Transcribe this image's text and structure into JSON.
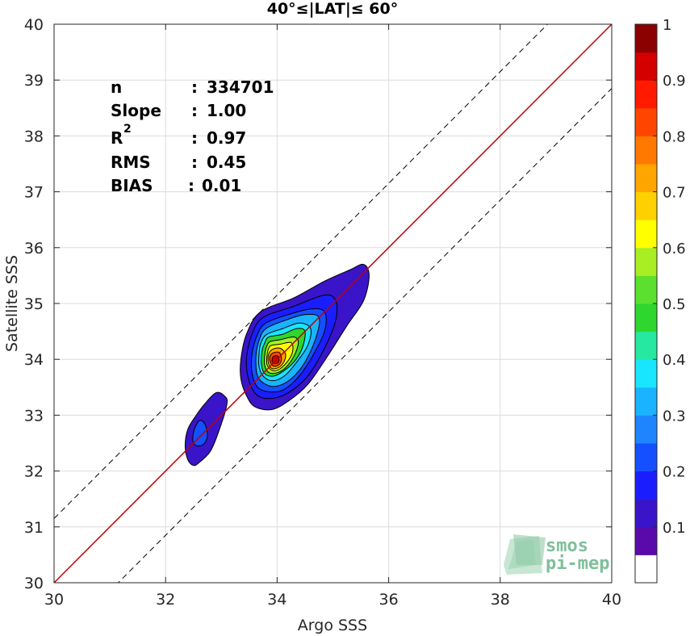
{
  "chart_data": {
    "type": "contour-density",
    "title": "40°≤|LAT|≤ 60°",
    "xlabel": "Argo SSS",
    "ylabel": "Satellite SSS",
    "xlim": [
      30,
      40
    ],
    "ylim": [
      30,
      40
    ],
    "xticks": [
      30,
      32,
      34,
      36,
      38,
      40
    ],
    "yticks": [
      30,
      31,
      32,
      33,
      34,
      35,
      36,
      37,
      38,
      39,
      40
    ],
    "grid": true,
    "stats": [
      {
        "key": "n",
        "sep": ":",
        "value": "334701"
      },
      {
        "key": "Slope",
        "sep": ":",
        "value": "1.00"
      },
      {
        "key": "R",
        "sup": "2",
        "sep": ":",
        "value": "0.97"
      },
      {
        "key": "RMS",
        "sep": ":",
        "value": "0.45"
      },
      {
        "key": "BIAS",
        "sep": ":",
        "value": "0.01"
      }
    ],
    "reference_line": {
      "slope": 1,
      "intercept": 0,
      "color": "#c00000"
    },
    "offset_lines": {
      "offsets": [
        -1.15,
        1.15
      ],
      "style": "dashed",
      "color": "#000000"
    },
    "main_blob": {
      "center": [
        33.95,
        33.95
      ],
      "peak": 1.0
    },
    "secondary_blob": {
      "center": [
        32.65,
        32.65
      ],
      "peak": 0.2
    },
    "colorbar": {
      "range": [
        0,
        1
      ],
      "ticks": [
        "0.1",
        "0.2",
        "0.3",
        "0.4",
        "0.5",
        "0.6",
        "0.7",
        "0.8",
        "0.9",
        "1"
      ],
      "colors": [
        "#ffffff",
        "#5a0aaa",
        "#3a14c8",
        "#1a1eff",
        "#1450ff",
        "#1f85ff",
        "#1ab3ff",
        "#18e6ff",
        "#26e8a0",
        "#2ed62e",
        "#5ce02e",
        "#a8ee22",
        "#ffff00",
        "#ffd000",
        "#ffa500",
        "#ff7800",
        "#ff4500",
        "#ff1a00",
        "#d40000",
        "#8b0000"
      ]
    },
    "contour_levels": [
      {
        "level": 0.05,
        "color": "#3a14c8",
        "points": [
          [
            32.7,
            33.2
          ],
          [
            32.9,
            33.4
          ],
          [
            33.05,
            33.35
          ],
          [
            33.1,
            33.2
          ],
          [
            32.95,
            32.7
          ],
          [
            32.8,
            32.35
          ],
          [
            32.6,
            32.15
          ],
          [
            32.5,
            32.1
          ],
          [
            32.4,
            32.2
          ],
          [
            32.35,
            32.45
          ],
          [
            32.4,
            32.75
          ],
          [
            32.55,
            33.0
          ]
        ]
      },
      {
        "level": 0.2,
        "color": "#1450ff",
        "points": [
          [
            32.6,
            32.9
          ],
          [
            32.7,
            32.85
          ],
          [
            32.75,
            32.65
          ],
          [
            32.7,
            32.5
          ],
          [
            32.6,
            32.45
          ],
          [
            32.5,
            32.5
          ],
          [
            32.5,
            32.7
          ]
        ]
      },
      {
        "level": 0.05,
        "color": "#3a14c8",
        "points": [
          [
            33.7,
            34.85
          ],
          [
            34.3,
            35.1
          ],
          [
            34.85,
            35.4
          ],
          [
            35.3,
            35.6
          ],
          [
            35.55,
            35.7
          ],
          [
            35.65,
            35.5
          ],
          [
            35.55,
            35.05
          ],
          [
            35.25,
            34.6
          ],
          [
            34.9,
            34.05
          ],
          [
            34.55,
            33.55
          ],
          [
            34.2,
            33.25
          ],
          [
            33.9,
            33.1
          ],
          [
            33.6,
            33.15
          ],
          [
            33.45,
            33.35
          ],
          [
            33.35,
            33.65
          ],
          [
            33.35,
            34.0
          ],
          [
            33.45,
            34.45
          ]
        ]
      },
      {
        "level": 0.1,
        "color": "#1a1eff",
        "points": [
          [
            33.75,
            34.75
          ],
          [
            34.3,
            34.95
          ],
          [
            34.85,
            35.15
          ],
          [
            35.05,
            35.05
          ],
          [
            35.05,
            34.7
          ],
          [
            34.85,
            34.2
          ],
          [
            34.55,
            33.7
          ],
          [
            34.2,
            33.4
          ],
          [
            33.9,
            33.3
          ],
          [
            33.65,
            33.35
          ],
          [
            33.5,
            33.6
          ],
          [
            33.45,
            34.0
          ],
          [
            33.55,
            34.45
          ]
        ]
      },
      {
        "level": 0.2,
        "color": "#1450ff",
        "points": [
          [
            33.8,
            34.65
          ],
          [
            34.2,
            34.8
          ],
          [
            34.6,
            34.9
          ],
          [
            34.85,
            34.85
          ],
          [
            34.85,
            34.5
          ],
          [
            34.6,
            34.0
          ],
          [
            34.35,
            33.65
          ],
          [
            34.1,
            33.45
          ],
          [
            33.85,
            33.42
          ],
          [
            33.65,
            33.5
          ],
          [
            33.55,
            33.75
          ],
          [
            33.55,
            34.1
          ],
          [
            33.65,
            34.45
          ]
        ]
      },
      {
        "level": 0.3,
        "color": "#1ab3ff",
        "points": [
          [
            33.8,
            34.55
          ],
          [
            34.15,
            34.7
          ],
          [
            34.5,
            34.8
          ],
          [
            34.75,
            34.75
          ],
          [
            34.7,
            34.4
          ],
          [
            34.5,
            33.95
          ],
          [
            34.25,
            33.65
          ],
          [
            34.0,
            33.52
          ],
          [
            33.8,
            33.55
          ],
          [
            33.65,
            33.7
          ],
          [
            33.62,
            34.05
          ],
          [
            33.68,
            34.35
          ]
        ]
      },
      {
        "level": 0.4,
        "color": "#18e6ff",
        "points": [
          [
            33.82,
            34.45
          ],
          [
            34.1,
            34.55
          ],
          [
            34.4,
            34.65
          ],
          [
            34.6,
            34.55
          ],
          [
            34.55,
            34.25
          ],
          [
            34.35,
            33.95
          ],
          [
            34.15,
            33.72
          ],
          [
            33.95,
            33.62
          ],
          [
            33.78,
            33.67
          ],
          [
            33.68,
            33.85
          ],
          [
            33.68,
            34.15
          ],
          [
            33.72,
            34.32
          ]
        ]
      },
      {
        "level": 0.5,
        "color": "#2ed62e",
        "points": [
          [
            33.85,
            34.4
          ],
          [
            34.1,
            34.45
          ],
          [
            34.35,
            34.55
          ],
          [
            34.5,
            34.5
          ],
          [
            34.45,
            34.2
          ],
          [
            34.3,
            33.95
          ],
          [
            34.1,
            33.78
          ],
          [
            33.93,
            33.7
          ],
          [
            33.78,
            33.74
          ],
          [
            33.72,
            33.9
          ],
          [
            33.73,
            34.15
          ],
          [
            33.78,
            34.3
          ]
        ]
      },
      {
        "level": 0.6,
        "color": "#a8ee22",
        "points": [
          [
            33.88,
            34.32
          ],
          [
            34.05,
            34.35
          ],
          [
            34.3,
            34.4
          ],
          [
            34.38,
            34.3
          ],
          [
            34.3,
            34.05
          ],
          [
            34.15,
            33.85
          ],
          [
            34.0,
            33.76
          ],
          [
            33.86,
            33.76
          ],
          [
            33.78,
            33.88
          ],
          [
            33.78,
            34.1
          ],
          [
            33.82,
            34.25
          ]
        ]
      },
      {
        "level": 0.7,
        "color": "#ffff00",
        "points": [
          [
            33.9,
            34.25
          ],
          [
            34.05,
            34.27
          ],
          [
            34.25,
            34.3
          ],
          [
            34.28,
            34.15
          ],
          [
            34.2,
            33.98
          ],
          [
            34.05,
            33.83
          ],
          [
            33.92,
            33.8
          ],
          [
            33.82,
            33.9
          ],
          [
            33.82,
            34.08
          ],
          [
            33.85,
            34.2
          ]
        ]
      },
      {
        "level": 0.8,
        "color": "#ffa500",
        "points": [
          [
            33.92,
            34.18
          ],
          [
            34.05,
            34.2
          ],
          [
            34.15,
            34.1
          ],
          [
            34.12,
            33.95
          ],
          [
            34.02,
            33.85
          ],
          [
            33.9,
            33.84
          ],
          [
            33.84,
            33.95
          ],
          [
            33.85,
            34.1
          ]
        ]
      },
      {
        "level": 0.9,
        "color": "#ff4500",
        "points": [
          [
            33.94,
            34.12
          ],
          [
            34.04,
            34.12
          ],
          [
            34.08,
            34.0
          ],
          [
            34.03,
            33.9
          ],
          [
            33.93,
            33.88
          ],
          [
            33.87,
            33.97
          ],
          [
            33.88,
            34.07
          ]
        ]
      },
      {
        "level": 0.95,
        "color": "#d40000",
        "points": [
          [
            33.95,
            34.06
          ],
          [
            34.02,
            34.05
          ],
          [
            34.03,
            33.96
          ],
          [
            33.97,
            33.92
          ],
          [
            33.91,
            33.96
          ],
          [
            33.92,
            34.03
          ]
        ]
      }
    ]
  },
  "logo": {
    "line1": "smos",
    "line2": "pi-mep"
  }
}
